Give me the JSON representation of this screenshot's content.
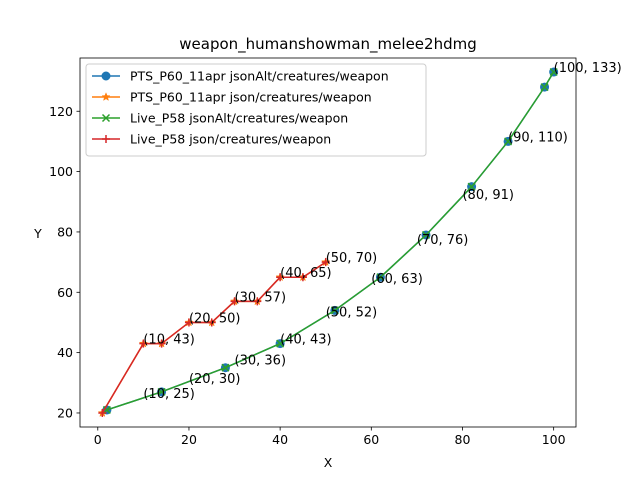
{
  "chart_data": {
    "type": "line",
    "title": "weapon_humanshowman_melee2hdmg",
    "xlabel": "X",
    "ylabel": "Y",
    "xlim": [
      -3.9,
      104.9
    ],
    "ylim": [
      15.35,
      137.65
    ],
    "xticks": [
      0,
      20,
      40,
      60,
      80,
      100
    ],
    "yticks": [
      20,
      40,
      60,
      80,
      100,
      120
    ],
    "grid": false,
    "legend_position": "top-left",
    "series": [
      {
        "name": "PTS_P60_11apr jsonAlt/creatures/weapon",
        "color": "#1f77b4",
        "marker": "circle",
        "x": [
          2,
          14,
          28,
          40,
          52,
          62,
          72,
          82,
          90,
          98,
          100
        ],
        "y": [
          21,
          27,
          35,
          43,
          54,
          65,
          79,
          95,
          110,
          128,
          133
        ]
      },
      {
        "name": "PTS_P60_11apr json/creatures/weapon",
        "color": "#ff7f0e",
        "marker": "star",
        "x": [
          1,
          10,
          14,
          20,
          25,
          30,
          35,
          40,
          45,
          50
        ],
        "y": [
          20,
          43,
          43,
          50,
          50,
          57,
          57,
          65,
          65,
          70
        ]
      },
      {
        "name": "Live_P58 jsonAlt/creatures/weapon",
        "color": "#2ca02c",
        "marker": "x",
        "x": [
          2,
          14,
          28,
          40,
          52,
          62,
          72,
          82,
          90,
          98,
          100
        ],
        "y": [
          21,
          27,
          35,
          43,
          54,
          65,
          79,
          95,
          110,
          128,
          133
        ]
      },
      {
        "name": "Live_P58 json/creatures/weapon",
        "color": "#d62728",
        "marker": "plus",
        "x": [
          1,
          10,
          14,
          20,
          25,
          30,
          35,
          40,
          45,
          50
        ],
        "y": [
          20,
          43,
          43,
          50,
          50,
          57,
          57,
          65,
          65,
          70
        ]
      }
    ],
    "annotations": [
      {
        "text": "(10, 25)",
        "x": 10,
        "y": 25
      },
      {
        "text": "(20, 30)",
        "x": 20,
        "y": 30
      },
      {
        "text": "(30, 36)",
        "x": 30,
        "y": 36
      },
      {
        "text": "(40, 43)",
        "x": 40,
        "y": 43
      },
      {
        "text": "(50, 52)",
        "x": 50,
        "y": 52
      },
      {
        "text": "(60, 63)",
        "x": 60,
        "y": 63
      },
      {
        "text": "(70, 76)",
        "x": 70,
        "y": 76
      },
      {
        "text": "(80, 91)",
        "x": 80,
        "y": 91
      },
      {
        "text": "(90, 110)",
        "x": 90,
        "y": 110
      },
      {
        "text": "(100, 133)",
        "x": 100,
        "y": 133
      },
      {
        "text": "(10, 43)",
        "x": 10,
        "y": 43
      },
      {
        "text": "(20, 50)",
        "x": 20,
        "y": 50
      },
      {
        "text": "(30, 57)",
        "x": 30,
        "y": 57
      },
      {
        "text": "(40, 65)",
        "x": 40,
        "y": 65
      },
      {
        "text": "(50, 70)",
        "x": 50,
        "y": 70
      }
    ]
  }
}
